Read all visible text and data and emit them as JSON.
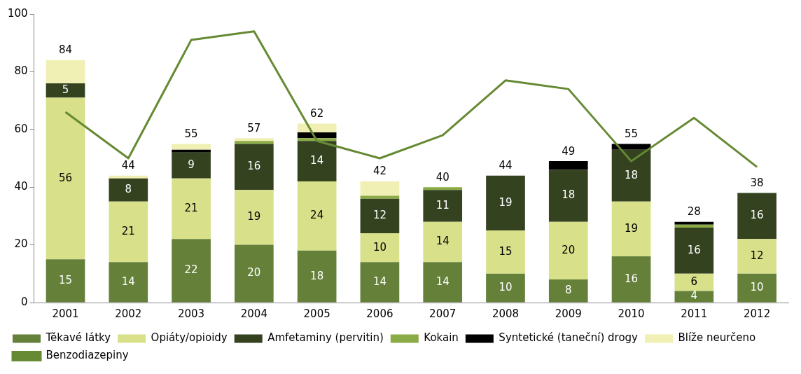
{
  "chart_data": {
    "type": "bar",
    "stacked": true,
    "categories": [
      "2001",
      "2002",
      "2003",
      "2004",
      "2005",
      "2006",
      "2007",
      "2008",
      "2009",
      "2010",
      "2011",
      "2012"
    ],
    "series": [
      {
        "name": "Těkavé látky",
        "color": "#648039",
        "values": [
          15,
          14,
          22,
          20,
          18,
          14,
          14,
          10,
          8,
          16,
          4,
          10
        ],
        "value_labels": [
          "15",
          "14",
          "22",
          "20",
          "18",
          "14",
          "14",
          "10",
          "8",
          "16",
          "4",
          "10"
        ]
      },
      {
        "name": "Opiáty/opioidy",
        "color": "#d8e08a",
        "values": [
          56,
          21,
          21,
          19,
          24,
          10,
          14,
          15,
          20,
          19,
          6,
          12
        ],
        "value_labels": [
          "56",
          "21",
          "21",
          "19",
          "24",
          "10",
          "14",
          "15",
          "20",
          "19",
          "6",
          "12"
        ]
      },
      {
        "name": "Amfetaminy (pervitin)",
        "color": "#344220",
        "values": [
          5,
          8,
          9,
          16,
          14,
          12,
          11,
          19,
          18,
          18,
          16,
          16
        ],
        "value_labels": [
          "5",
          "8",
          "9",
          "16",
          "14",
          "12",
          "11",
          "19",
          "18",
          "18",
          "16",
          "16"
        ]
      },
      {
        "name": "Kokain",
        "color": "#8aab45",
        "values": [
          0,
          0,
          0,
          1,
          1,
          1,
          1,
          0,
          0,
          0,
          1,
          0
        ]
      },
      {
        "name": "Syntetické (taneční) drogy",
        "color": "#000000",
        "values": [
          0,
          0,
          1,
          0,
          2,
          0,
          0,
          0,
          3,
          2,
          1,
          0
        ]
      },
      {
        "name": "Blíže neurčeno",
        "color": "#f0f0b4",
        "values": [
          8,
          1,
          2,
          1,
          3,
          5,
          0,
          0,
          0,
          0,
          0,
          0
        ]
      },
      {
        "name": "Benzodiazepiny",
        "type": "line",
        "color": "#668a33",
        "values": [
          66,
          50,
          91,
          94,
          56,
          50,
          58,
          77,
          74,
          49,
          64,
          47
        ]
      }
    ],
    "totals": [
      "84",
      "44",
      "55",
      "57",
      "62",
      "42",
      "40",
      "44",
      "49",
      "55",
      "28",
      "38"
    ],
    "ylim": [
      0,
      100
    ],
    "yticks": [
      0,
      20,
      40,
      60,
      80,
      100
    ],
    "grid": false,
    "legend": "bottom",
    "marker": "none"
  }
}
